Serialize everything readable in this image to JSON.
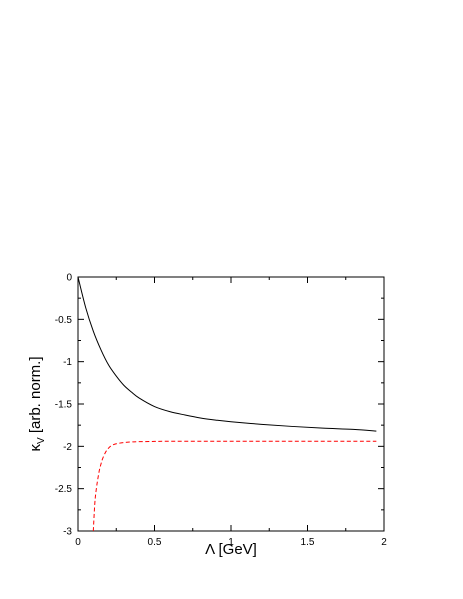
{
  "chart_data": {
    "type": "line",
    "title": "",
    "xlabel": "Λ [GeV]",
    "ylabel_main": "κ",
    "ylabel_sub": "V",
    "ylabel_rest": " [arb. norm.]",
    "xlim": [
      0,
      2
    ],
    "ylim": [
      -3,
      0
    ],
    "xticks": [
      0,
      0.5,
      1,
      1.5,
      2
    ],
    "xtick_labels": [
      "0",
      "0.5",
      "1",
      "1.5",
      "2"
    ],
    "yticks": [
      0,
      -0.5,
      -1,
      -1.5,
      -2,
      -2.5,
      -3
    ],
    "ytick_labels": [
      "0",
      "-0.5",
      "-1",
      "-1.5",
      "-2",
      "-2.5",
      "-3"
    ],
    "grid": false,
    "legend": "none",
    "series": [
      {
        "color": "#000000",
        "style": "solid",
        "x": [
          0.0,
          0.05,
          0.1,
          0.15,
          0.2,
          0.25,
          0.3,
          0.35,
          0.4,
          0.5,
          0.6,
          0.7,
          0.8,
          0.9,
          1.0,
          1.2,
          1.4,
          1.6,
          1.8,
          1.95
        ],
        "y": [
          0.0,
          -0.36,
          -0.64,
          -0.86,
          -1.04,
          -1.17,
          -1.28,
          -1.36,
          -1.43,
          -1.53,
          -1.59,
          -1.63,
          -1.665,
          -1.69,
          -1.71,
          -1.74,
          -1.765,
          -1.785,
          -1.8,
          -1.82
        ]
      },
      {
        "color": "#ff0000",
        "style": "dashed",
        "x": [
          0.1,
          0.11,
          0.12,
          0.13,
          0.14,
          0.15,
          0.16,
          0.18,
          0.2,
          0.22,
          0.25,
          0.3,
          0.35,
          0.4,
          0.5,
          0.6,
          0.8,
          1.0,
          1.5,
          1.95
        ],
        "y": [
          -3.0,
          -2.67,
          -2.5,
          -2.38,
          -2.28,
          -2.21,
          -2.15,
          -2.07,
          -2.02,
          -1.99,
          -1.97,
          -1.955,
          -1.948,
          -1.945,
          -1.942,
          -1.94,
          -1.94,
          -1.94,
          -1.94,
          -1.94
        ]
      }
    ]
  }
}
